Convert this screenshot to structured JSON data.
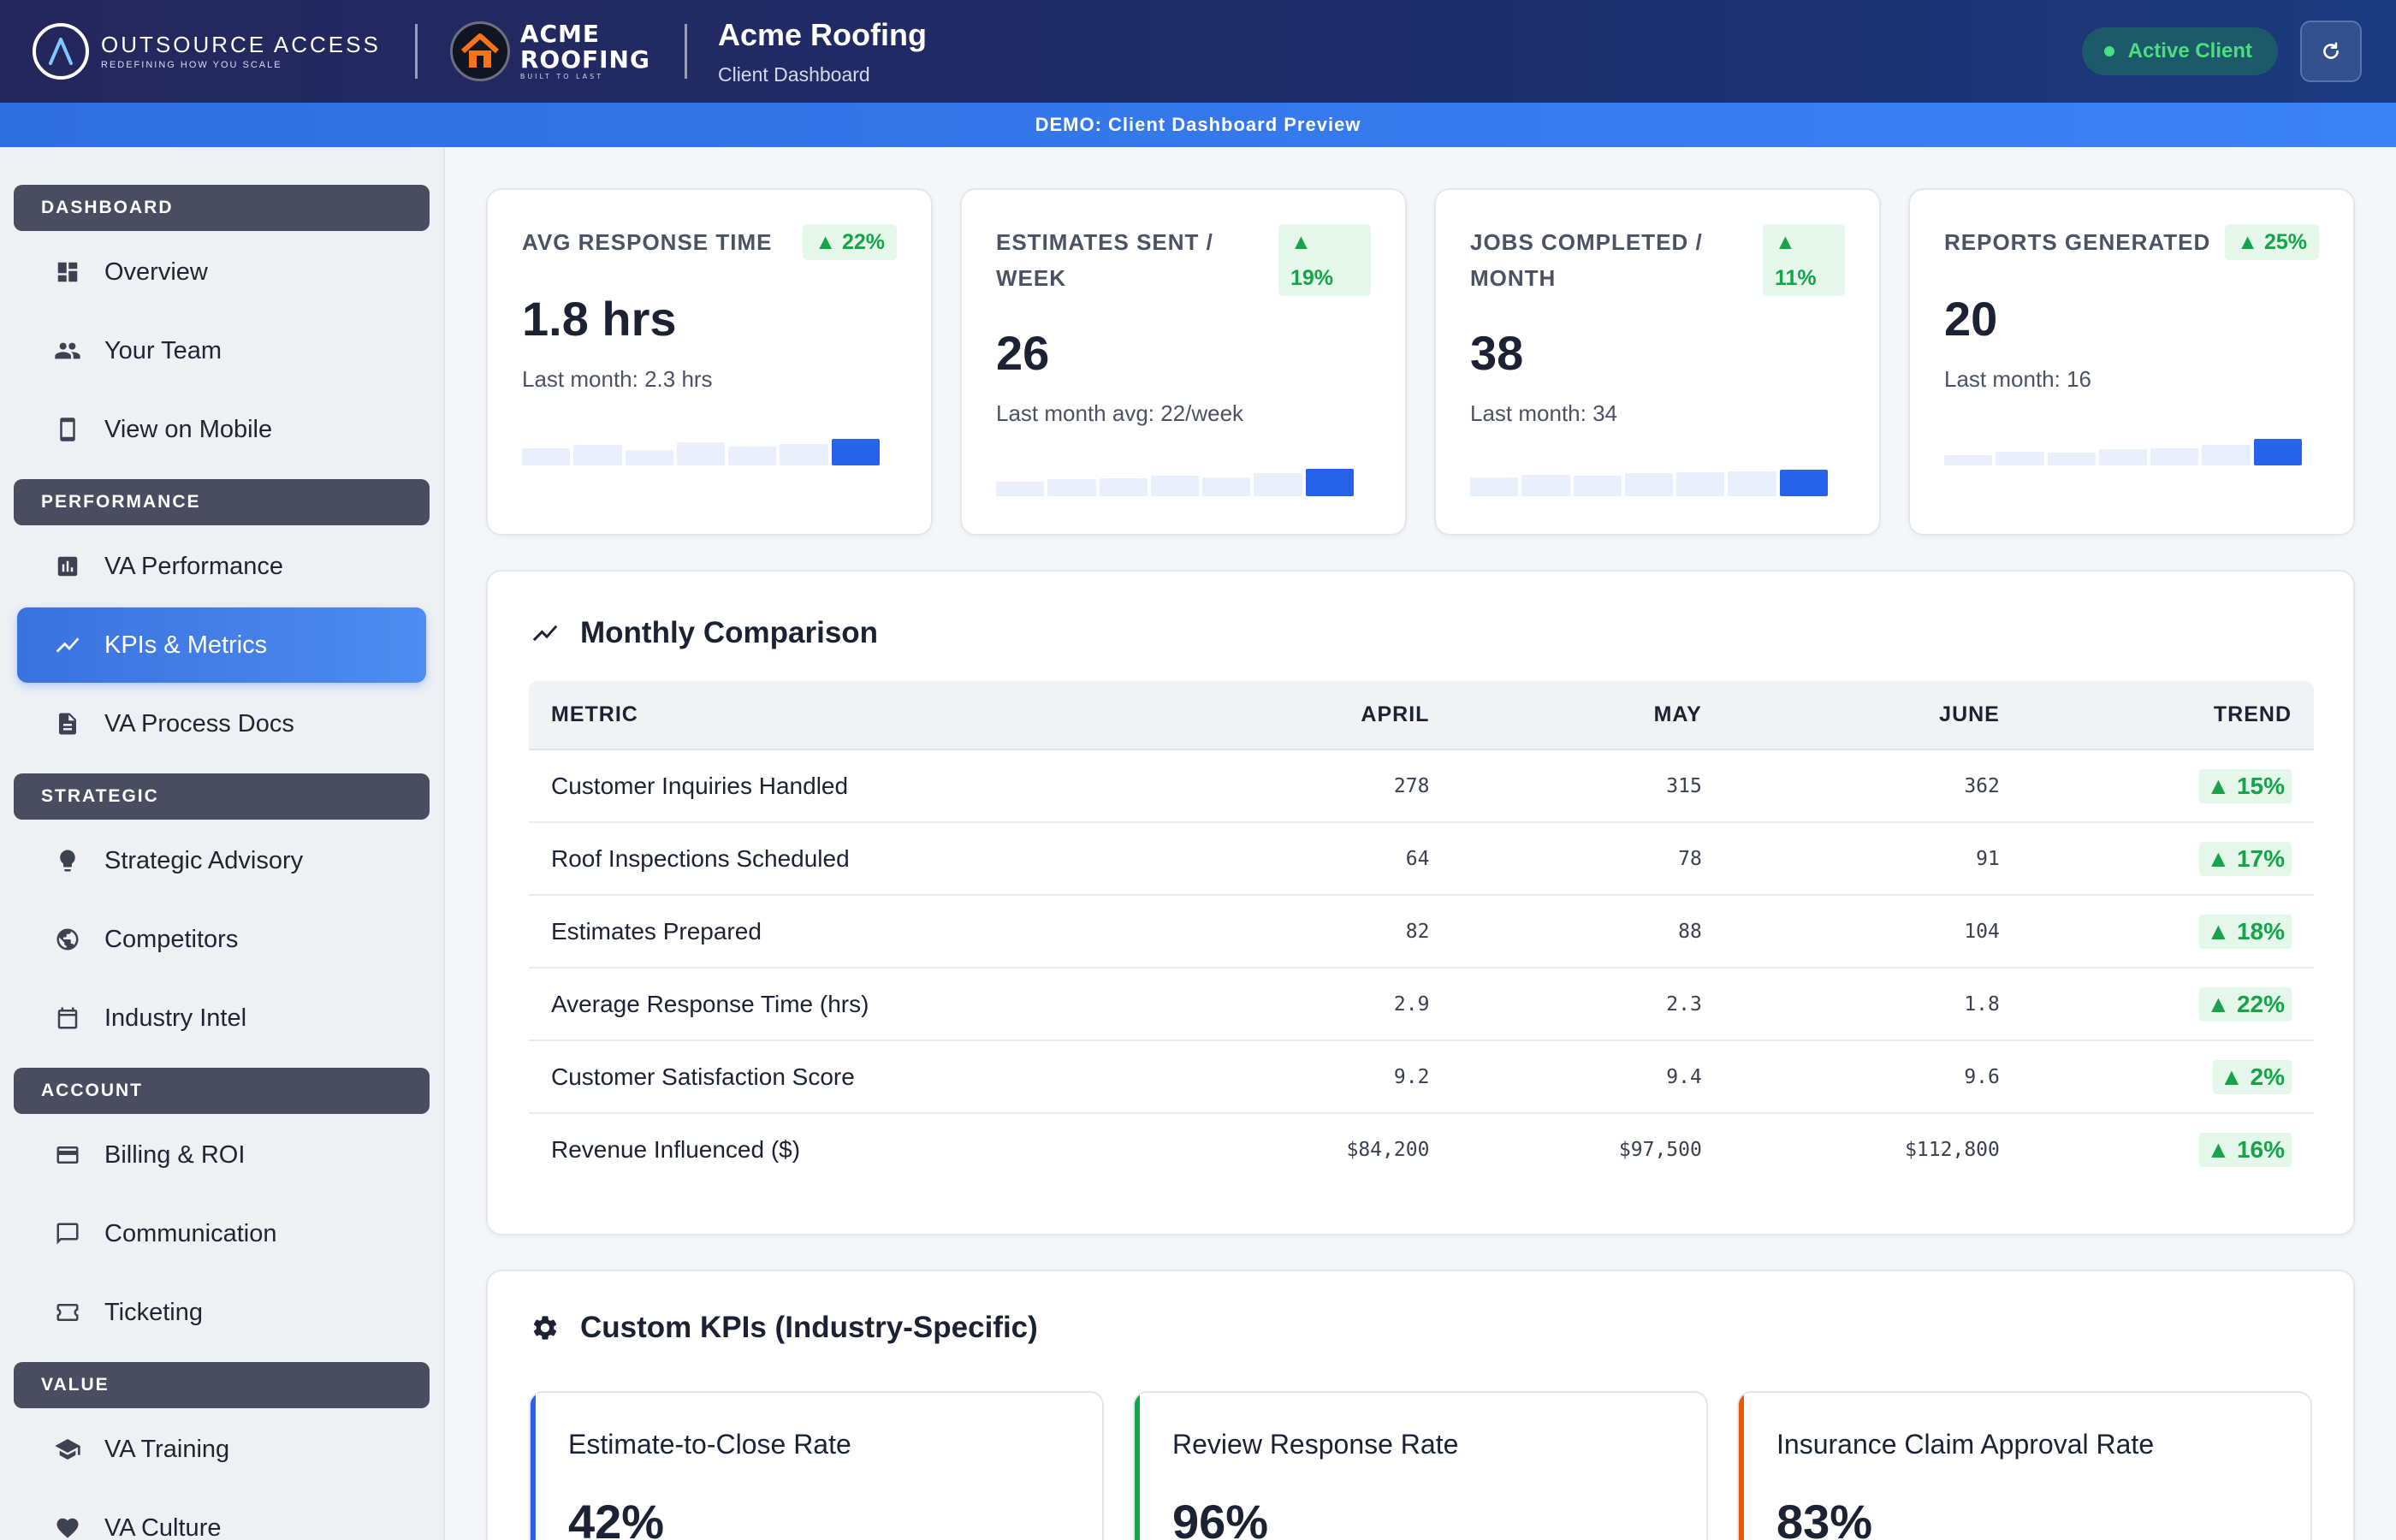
{
  "header": {
    "brand_name": "OUTSOURCE ACCESS",
    "brand_tagline": "REDEFINING HOW YOU SCALE",
    "client_logo_line1": "ACME",
    "client_logo_line2": "ROOFING",
    "client_logo_tagline": "BUILT TO LAST",
    "client_name": "Acme Roofing",
    "client_subtitle": "Client Dashboard",
    "status_label": "Active Client"
  },
  "demo_banner": "DEMO: Client Dashboard Preview",
  "sidebar": {
    "sections": [
      {
        "title": "DASHBOARD",
        "items": [
          {
            "label": "Overview",
            "icon": "dashboard-icon"
          },
          {
            "label": "Your Team",
            "icon": "people-icon"
          },
          {
            "label": "View on Mobile",
            "icon": "phone-icon"
          }
        ]
      },
      {
        "title": "PERFORMANCE",
        "items": [
          {
            "label": "VA Performance",
            "icon": "bar-chart-icon"
          },
          {
            "label": "KPIs & Metrics",
            "icon": "trend-icon",
            "active": true
          },
          {
            "label": "VA Process Docs",
            "icon": "document-icon"
          }
        ]
      },
      {
        "title": "STRATEGIC",
        "items": [
          {
            "label": "Strategic Advisory",
            "icon": "lightbulb-icon"
          },
          {
            "label": "Competitors",
            "icon": "globe-icon"
          },
          {
            "label": "Industry Intel",
            "icon": "calendar-icon"
          }
        ]
      },
      {
        "title": "ACCOUNT",
        "items": [
          {
            "label": "Billing & ROI",
            "icon": "credit-card-icon"
          },
          {
            "label": "Communication",
            "icon": "chat-icon"
          },
          {
            "label": "Ticketing",
            "icon": "ticket-icon"
          }
        ]
      },
      {
        "title": "VALUE",
        "items": [
          {
            "label": "VA Training",
            "icon": "graduation-cap-icon"
          },
          {
            "label": "VA Culture",
            "icon": "heart-icon"
          }
        ]
      }
    ]
  },
  "stats": [
    {
      "title_line1": "AVG RESPONSE TIME",
      "title_line2": "",
      "badge": "22%",
      "value": "1.8 hrs",
      "sub": "Last month: 2.3 hrs",
      "spark": [
        0.35,
        0.42,
        0.33,
        0.48,
        0.4,
        0.45,
        0.55
      ]
    },
    {
      "title_line1": "ESTIMATES SENT /",
      "title_line2": "WEEK",
      "badge": "19%",
      "value": "26",
      "sub": "Last month avg: 22/week",
      "spark": [
        0.3,
        0.35,
        0.38,
        0.42,
        0.4,
        0.48,
        0.58
      ]
    },
    {
      "title_line1": "JOBS COMPLETED /",
      "title_line2": "MONTH",
      "badge": "11%",
      "value": "38",
      "sub": "Last month: 34",
      "spark": [
        0.4,
        0.45,
        0.42,
        0.48,
        0.5,
        0.52,
        0.55
      ]
    },
    {
      "title_line1": "REPORTS GENERATED",
      "title_line2": "",
      "badge": "25%",
      "value": "20",
      "sub": "Last month: 16",
      "spark": [
        0.22,
        0.28,
        0.26,
        0.34,
        0.36,
        0.42,
        0.55
      ]
    }
  ],
  "comparison": {
    "title": "Monthly Comparison",
    "columns": [
      "METRIC",
      "APRIL",
      "MAY",
      "JUNE",
      "TREND"
    ],
    "rows": [
      {
        "metric": "Customer Inquiries Handled",
        "april": "278",
        "may": "315",
        "june": "362",
        "trend": "15%"
      },
      {
        "metric": "Roof Inspections Scheduled",
        "april": "64",
        "may": "78",
        "june": "91",
        "trend": "17%"
      },
      {
        "metric": "Estimates Prepared",
        "april": "82",
        "may": "88",
        "june": "104",
        "trend": "18%"
      },
      {
        "metric": "Average Response Time (hrs)",
        "april": "2.9",
        "may": "2.3",
        "june": "1.8",
        "trend": "22%"
      },
      {
        "metric": "Customer Satisfaction Score",
        "april": "9.2",
        "may": "9.4",
        "june": "9.6",
        "trend": "2%"
      },
      {
        "metric": "Revenue Influenced ($)",
        "april": "$84,200",
        "may": "$97,500",
        "june": "$112,800",
        "trend": "16%"
      }
    ]
  },
  "custom_kpis": {
    "title": "Custom KPIs (Industry-Specific)",
    "items": [
      {
        "name": "Estimate-to-Close Rate",
        "value": "42%",
        "accent": "#2563eb"
      },
      {
        "name": "Review Response Rate",
        "value": "96%",
        "accent": "#16a34a"
      },
      {
        "name": "Insurance Claim Approval Rate",
        "value": "83%",
        "accent": "#ea580c"
      }
    ]
  },
  "colors": {
    "accent": "#2563eb",
    "positive": "#16a34a",
    "header_bg": "#24275c"
  }
}
